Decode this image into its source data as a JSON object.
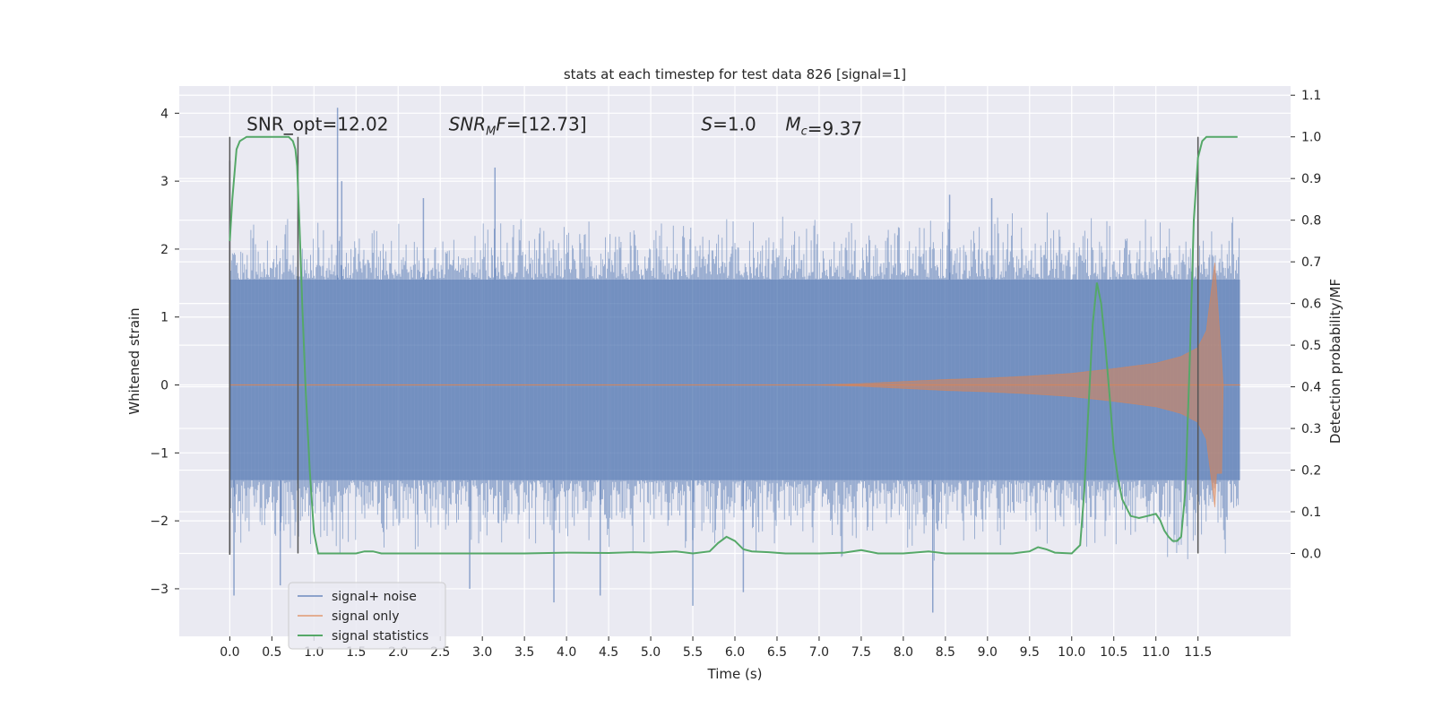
{
  "chart_data": {
    "type": "line",
    "title": "stats at each timestep for test data 826 [signal=1]",
    "xlabel": "Time (s)",
    "ylabel": "Whitened strain",
    "y2label": "Detection probability/MF",
    "xlim": [
      -0.6,
      12.6
    ],
    "ylim": [
      -3.7,
      4.4
    ],
    "y2lim": [
      -0.199,
      1.122
    ],
    "xticks": [
      0.0,
      0.5,
      1.0,
      1.5,
      2.0,
      2.5,
      3.0,
      3.5,
      4.0,
      4.5,
      5.0,
      5.5,
      6.0,
      6.5,
      7.0,
      7.5,
      8.0,
      8.5,
      9.0,
      9.5,
      10.0,
      10.5,
      11.0,
      11.5
    ],
    "xtick_labels": [
      "0.0",
      "0.5",
      "1.0",
      "1.5",
      "2.0",
      "2.5",
      "3.0",
      "3.5",
      "4.0",
      "4.5",
      "5.0",
      "5.5",
      "6.0",
      "6.5",
      "7.0",
      "7.5",
      "8.0",
      "8.5",
      "9.0",
      "9.5",
      "10.0",
      "10.5",
      "11.0",
      "11.5"
    ],
    "yticks": [
      -3,
      -2,
      -1,
      0,
      1,
      2,
      3,
      4
    ],
    "ytick_labels": [
      "−3",
      "−2",
      "−1",
      "0",
      "1",
      "2",
      "3",
      "4"
    ],
    "y2ticks": [
      0.0,
      0.1,
      0.2,
      0.3,
      0.4,
      0.5,
      0.6,
      0.7,
      0.8,
      0.9,
      1.0,
      1.1
    ],
    "y2tick_labels": [
      "0.0",
      "0.1",
      "0.2",
      "0.3",
      "0.4",
      "0.5",
      "0.6",
      "0.7",
      "0.8",
      "0.9",
      "1.0",
      "1.1"
    ],
    "grid": true,
    "legend_position": "lower-left",
    "annotations": [
      {
        "text": "SNR_opt=12.02",
        "x": 0.2,
        "y2": 1.015
      },
      {
        "text": "SNR_MF=[12.73]",
        "x": 2.6,
        "y2": 1.015
      },
      {
        "text": "S=1.0",
        "x": 5.6,
        "y2": 1.015
      },
      {
        "text": "M_c=9.37",
        "x": 6.6,
        "y2": 1.015
      }
    ],
    "vertical_markers": [
      0.0,
      0.81,
      11.5
    ],
    "vertical_marker_range_y2": [
      0.0,
      1.0
    ],
    "series": [
      {
        "name": "signal+ noise",
        "color": "#4c72b0",
        "kind": "noise-envelope",
        "x_range": [
          0.0,
          12.0
        ],
        "core_range": [
          -1.4,
          1.55
        ],
        "typical_extremes": [
          -2.5,
          2.5
        ],
        "notable_extremes": [
          {
            "x": 0.05,
            "y": -3.1
          },
          {
            "x": 0.6,
            "y": -2.95
          },
          {
            "x": 1.28,
            "y": 4.08
          },
          {
            "x": 1.33,
            "y": 3.0
          },
          {
            "x": 2.3,
            "y": 2.75
          },
          {
            "x": 2.85,
            "y": -3.0
          },
          {
            "x": 3.15,
            "y": 3.2
          },
          {
            "x": 3.85,
            "y": -3.2
          },
          {
            "x": 4.4,
            "y": -3.1
          },
          {
            "x": 5.5,
            "y": -3.25
          },
          {
            "x": 6.1,
            "y": -3.05
          },
          {
            "x": 8.35,
            "y": -3.35
          },
          {
            "x": 8.55,
            "y": 2.8
          },
          {
            "x": 9.05,
            "y": 2.75
          }
        ]
      },
      {
        "name": "signal only",
        "color": "#dd8452",
        "kind": "chirp",
        "x": [
          0.0,
          7.0,
          7.5,
          8.0,
          8.5,
          9.0,
          9.5,
          10.0,
          10.5,
          11.0,
          11.3,
          11.5,
          11.6,
          11.7,
          11.8,
          12.0
        ],
        "amplitude": [
          0.0,
          0.0,
          0.02,
          0.05,
          0.08,
          0.1,
          0.13,
          0.17,
          0.24,
          0.32,
          0.42,
          0.55,
          0.8,
          1.8,
          0.0,
          0.0
        ]
      },
      {
        "name": "signal statistics",
        "color": "#55a868",
        "kind": "line",
        "axis": "right",
        "x": [
          0.0,
          0.03,
          0.08,
          0.12,
          0.2,
          0.3,
          0.4,
          0.5,
          0.6,
          0.7,
          0.75,
          0.78,
          0.8,
          0.83,
          0.86,
          0.9,
          0.95,
          1.0,
          1.05,
          1.1,
          1.3,
          1.5,
          1.6,
          1.7,
          1.8,
          2.0,
          3.0,
          3.5,
          4.0,
          4.5,
          4.8,
          5.0,
          5.3,
          5.5,
          5.7,
          5.8,
          5.9,
          6.0,
          6.1,
          6.2,
          6.4,
          6.6,
          7.0,
          7.3,
          7.5,
          7.7,
          8.0,
          8.3,
          8.5,
          9.0,
          9.3,
          9.5,
          9.6,
          9.7,
          9.8,
          10.0,
          10.1,
          10.15,
          10.2,
          10.25,
          10.3,
          10.35,
          10.4,
          10.45,
          10.5,
          10.55,
          10.6,
          10.7,
          10.8,
          10.9,
          11.0,
          11.05,
          11.1,
          11.15,
          11.2,
          11.25,
          11.3,
          11.35,
          11.4,
          11.45,
          11.5,
          11.55,
          11.6,
          11.65,
          11.7,
          11.8,
          11.9,
          11.97
        ],
        "y": [
          0.75,
          0.85,
          0.97,
          0.99,
          1.0,
          1.0,
          1.0,
          1.0,
          1.0,
          1.0,
          0.99,
          0.97,
          0.93,
          0.78,
          0.6,
          0.4,
          0.2,
          0.05,
          0.0,
          0.0,
          0.0,
          0.0,
          0.005,
          0.005,
          0.0,
          0.0,
          0.0,
          0.0,
          0.002,
          0.001,
          0.003,
          0.002,
          0.005,
          0.0,
          0.005,
          0.025,
          0.04,
          0.03,
          0.01,
          0.005,
          0.003,
          0.0,
          0.0,
          0.002,
          0.008,
          0.0,
          0.0,
          0.005,
          0.0,
          0.0,
          0.0,
          0.005,
          0.015,
          0.01,
          0.002,
          0.0,
          0.02,
          0.15,
          0.35,
          0.55,
          0.65,
          0.6,
          0.5,
          0.38,
          0.25,
          0.18,
          0.13,
          0.09,
          0.085,
          0.09,
          0.095,
          0.08,
          0.055,
          0.04,
          0.03,
          0.03,
          0.04,
          0.15,
          0.45,
          0.8,
          0.95,
          0.99,
          1.0,
          1.0,
          1.0,
          1.0,
          1.0,
          1.0
        ]
      }
    ]
  }
}
